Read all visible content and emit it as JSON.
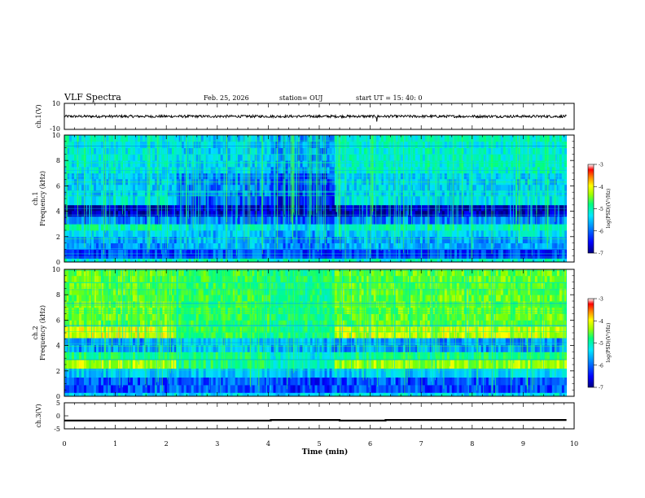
{
  "header": {
    "title": "VLF Spectra",
    "date": "Feb. 25, 2026",
    "station": "station= OUJ",
    "start": "start  UT =   15: 40: 0"
  },
  "colors": {
    "colormap": [
      "#000080",
      "#0000ff",
      "#0080ff",
      "#00e0ff",
      "#00ff80",
      "#80ff00",
      "#ffff00",
      "#ff8000",
      "#ff0000",
      "#ffffff"
    ],
    "trace": "#000000"
  },
  "chart_data": [
    {
      "type": "line",
      "panel": "ch1-waveform",
      "ylabel": "ch.1(V)",
      "ylim": [
        -10,
        10
      ],
      "yticks": [
        "10",
        "-10"
      ],
      "x_range_min": [
        0,
        9.85
      ],
      "series": [
        {
          "values_description_mean": 0,
          "amplitude": 1
        }
      ]
    },
    {
      "type": "heatmap",
      "panel": "ch1-spectrogram",
      "ylabel": "ch.1\nFrequency (kHz)",
      "ylim": [
        0,
        10
      ],
      "yticks": [
        "0",
        "2",
        "4",
        "6",
        "8",
        "10"
      ],
      "colorbar": {
        "label": "log(PSD)(V²/Hz)",
        "ticks": [
          "-3",
          "-4",
          "-5",
          "-6",
          "-7"
        ],
        "range": [
          -7,
          -3
        ]
      },
      "segments_min": [
        0,
        2.2,
        4.05,
        5.3,
        9.85
      ],
      "bands_khz": [
        {
          "f": [
            0.0,
            0.3
          ],
          "level": [
            -5.3,
            -5.2,
            -5.3,
            -5.3
          ]
        },
        {
          "f": [
            0.3,
            1.0
          ],
          "level": [
            -6.3,
            -6.2,
            -6.3,
            -6.3
          ]
        },
        {
          "f": [
            1.0,
            2.0
          ],
          "level": [
            -5.9,
            -5.7,
            -6.0,
            -5.8
          ]
        },
        {
          "f": [
            2.0,
            2.5
          ],
          "level": [
            -5.6,
            -5.7,
            -5.9,
            -5.5
          ]
        },
        {
          "f": [
            2.5,
            3.0
          ],
          "level": [
            -5.2,
            -5.4,
            -5.6,
            -5.2
          ]
        },
        {
          "f": [
            3.0,
            3.6
          ],
          "level": [
            -6.0,
            -6.0,
            -6.1,
            -6.0
          ]
        },
        {
          "f": [
            3.6,
            4.5
          ],
          "level": [
            -6.8,
            -6.7,
            -6.8,
            -6.8
          ]
        },
        {
          "f": [
            4.5,
            5.2
          ],
          "level": [
            -5.4,
            -6.2,
            -6.5,
            -5.5
          ]
        },
        {
          "f": [
            5.2,
            7.0
          ],
          "level": [
            -5.6,
            -6.0,
            -6.3,
            -5.6
          ]
        },
        {
          "f": [
            7.0,
            10.0
          ],
          "level": [
            -5.4,
            -5.6,
            -5.9,
            -5.3
          ]
        }
      ]
    },
    {
      "type": "heatmap",
      "panel": "ch2-spectrogram",
      "ylabel": "ch.2\nFrequency (kHz)",
      "ylim": [
        0,
        10
      ],
      "yticks": [
        "0",
        "2",
        "4",
        "6",
        "8",
        "10"
      ],
      "colorbar": {
        "label": "log(PSD)(V²/Hz)",
        "ticks": [
          "-3",
          "-4",
          "-5",
          "-6",
          "-7"
        ],
        "range": [
          -7,
          -3
        ]
      },
      "segments_min": [
        0,
        2.2,
        4.05,
        5.3,
        9.85
      ],
      "bands_khz": [
        {
          "f": [
            0.0,
            0.3
          ],
          "level": [
            -5.5,
            -5.5,
            -5.6,
            -5.5
          ]
        },
        {
          "f": [
            0.3,
            1.5
          ],
          "level": [
            -6.2,
            -6.1,
            -6.3,
            -6.2
          ]
        },
        {
          "f": [
            1.5,
            2.2
          ],
          "level": [
            -5.6,
            -5.6,
            -5.8,
            -5.6
          ]
        },
        {
          "f": [
            2.2,
            2.9
          ],
          "level": [
            -4.3,
            -5.0,
            -5.3,
            -4.4
          ]
        },
        {
          "f": [
            2.9,
            3.5
          ],
          "level": [
            -5.0,
            -5.0,
            -5.4,
            -5.0
          ]
        },
        {
          "f": [
            3.5,
            4.6
          ],
          "level": [
            -5.9,
            -5.6,
            -5.8,
            -5.9
          ]
        },
        {
          "f": [
            4.6,
            5.5
          ],
          "level": [
            -4.1,
            -4.8,
            -5.0,
            -4.2
          ]
        },
        {
          "f": [
            5.5,
            10.0
          ],
          "level": [
            -4.6,
            -4.8,
            -5.0,
            -4.6
          ]
        }
      ]
    },
    {
      "type": "line",
      "panel": "ch3-trigger",
      "ylabel": "ch.3(V)",
      "ylim": [
        -5,
        5
      ],
      "yticks": [
        "5",
        "0",
        "-5"
      ],
      "series": [
        {
          "x": [
            0,
            4.05,
            4.05,
            5.4,
            5.4,
            6.3,
            6.3,
            9.85
          ],
          "values": [
            -1.8,
            -1.8,
            -1.6,
            -1.6,
            -1.8,
            -1.8,
            -1.6,
            -1.6
          ]
        }
      ]
    }
  ],
  "xaxis": {
    "xlabel": "Time  (min)",
    "xlim": [
      0,
      10
    ],
    "ticks": [
      "0",
      "1",
      "2",
      "3",
      "4",
      "5",
      "6",
      "7",
      "8",
      "9",
      "10"
    ]
  }
}
